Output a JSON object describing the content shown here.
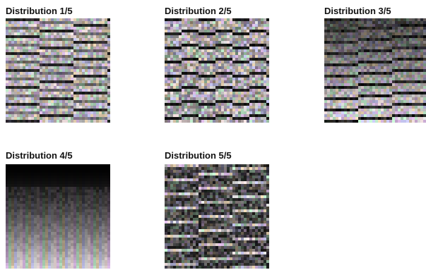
{
  "panels": [
    {
      "title": "Distribution 1/5",
      "variant": "bright-striped"
    },
    {
      "title": "Distribution 2/5",
      "variant": "gray-diagonal"
    },
    {
      "title": "Distribution 3/5",
      "variant": "dark-blocks"
    },
    {
      "title": "Distribution 4/5",
      "variant": "vertical-gradient"
    },
    {
      "title": "Distribution 5/5",
      "variant": "dark-noisy"
    }
  ]
}
